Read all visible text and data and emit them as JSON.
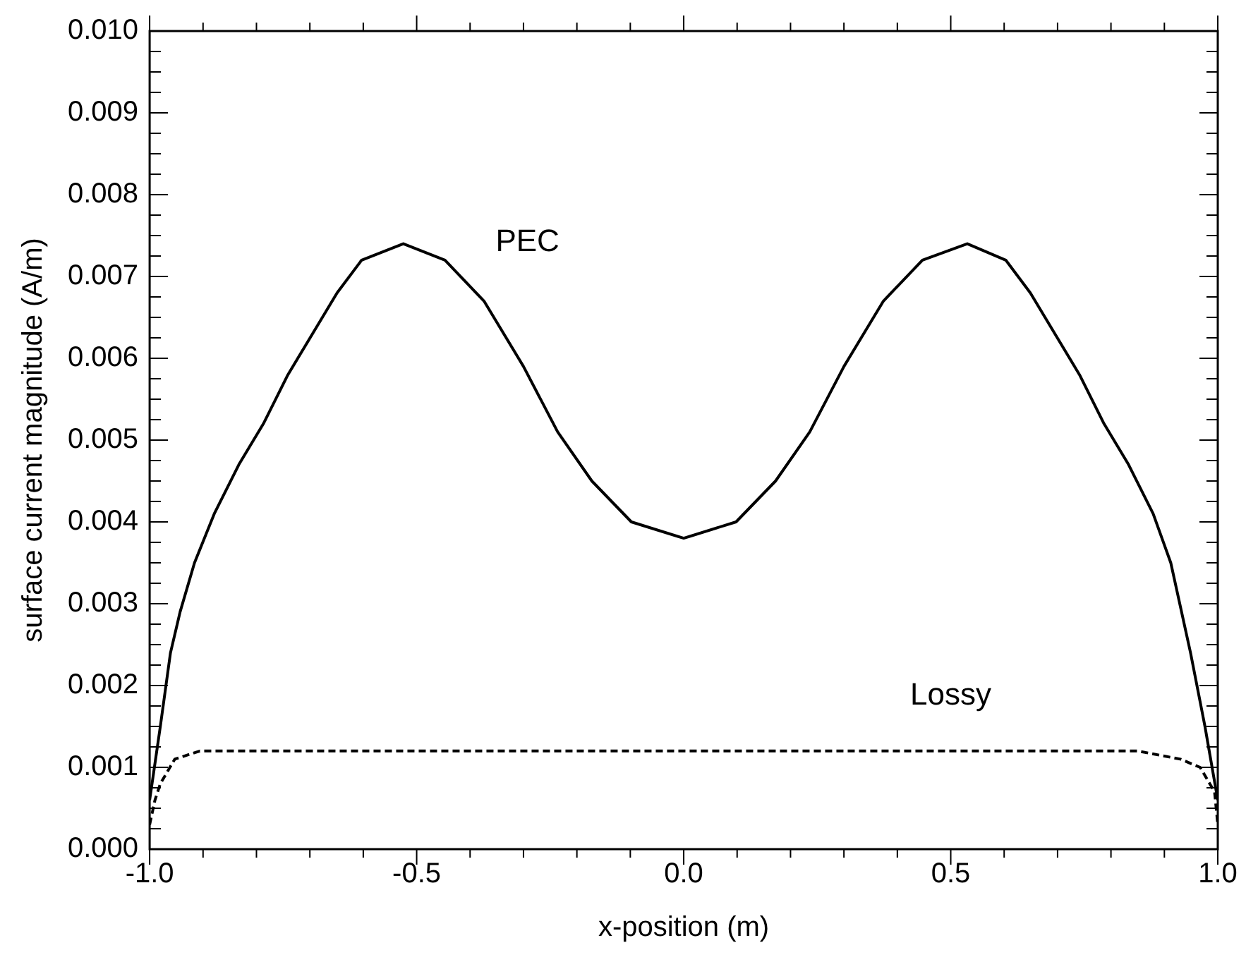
{
  "chart_data": {
    "type": "line",
    "xlabel": "x-position (m)",
    "ylabel": "surface current magnitude (A/m)",
    "xlim": [
      -1,
      1
    ],
    "ylim": [
      0,
      0.01
    ],
    "xticks": [
      {
        "value": -1,
        "label": "-1.0"
      },
      {
        "value": -0.9,
        "label": null
      },
      {
        "value": -0.8,
        "label": null
      },
      {
        "value": -0.7,
        "label": null
      },
      {
        "value": -0.6,
        "label": null
      },
      {
        "value": -0.5,
        "label": "-0.5"
      },
      {
        "value": -0.4,
        "label": null
      },
      {
        "value": -0.3,
        "label": null
      },
      {
        "value": -0.2,
        "label": null
      },
      {
        "value": -0.1,
        "label": null
      },
      {
        "value": 0,
        "label": "0.0"
      },
      {
        "value": 0.1,
        "label": null
      },
      {
        "value": 0.2,
        "label": null
      },
      {
        "value": 0.3,
        "label": null
      },
      {
        "value": 0.4,
        "label": null
      },
      {
        "value": 0.5,
        "label": "0.5"
      },
      {
        "value": 0.6,
        "label": null
      },
      {
        "value": 0.7,
        "label": null
      },
      {
        "value": 0.8,
        "label": null
      },
      {
        "value": 0.9,
        "label": null
      },
      {
        "value": 1,
        "label": "1.0"
      }
    ],
    "yticks": [
      {
        "value": 0,
        "label": "0.000"
      },
      {
        "value": 0.00025,
        "label": null
      },
      {
        "value": 0.0005,
        "label": null
      },
      {
        "value": 0.00075,
        "label": null
      },
      {
        "value": 0.001,
        "label": "0.001"
      },
      {
        "value": 0.00125,
        "label": null
      },
      {
        "value": 0.0015,
        "label": null
      },
      {
        "value": 0.00175,
        "label": null
      },
      {
        "value": 0.002,
        "label": "0.002"
      },
      {
        "value": 0.00225,
        "label": null
      },
      {
        "value": 0.0025,
        "label": null
      },
      {
        "value": 0.00275,
        "label": null
      },
      {
        "value": 0.003,
        "label": "0.003"
      },
      {
        "value": 0.00325,
        "label": null
      },
      {
        "value": 0.0035,
        "label": null
      },
      {
        "value": 0.00375,
        "label": null
      },
      {
        "value": 0.004,
        "label": "0.004"
      },
      {
        "value": 0.00425,
        "label": null
      },
      {
        "value": 0.0045,
        "label": null
      },
      {
        "value": 0.00475,
        "label": null
      },
      {
        "value": 0.005,
        "label": "0.005"
      },
      {
        "value": 0.00525,
        "label": null
      },
      {
        "value": 0.0055,
        "label": null
      },
      {
        "value": 0.00575,
        "label": null
      },
      {
        "value": 0.006,
        "label": "0.006"
      },
      {
        "value": 0.00625,
        "label": null
      },
      {
        "value": 0.0065,
        "label": null
      },
      {
        "value": 0.00675,
        "label": null
      },
      {
        "value": 0.007,
        "label": "0.007"
      },
      {
        "value": 0.00725,
        "label": null
      },
      {
        "value": 0.0075,
        "label": null
      },
      {
        "value": 0.00775,
        "label": null
      },
      {
        "value": 0.008,
        "label": "0.008"
      },
      {
        "value": 0.00825,
        "label": null
      },
      {
        "value": 0.0085,
        "label": null
      },
      {
        "value": 0.00875,
        "label": null
      },
      {
        "value": 0.009,
        "label": "0.009"
      },
      {
        "value": 0.00925,
        "label": null
      },
      {
        "value": 0.0095,
        "label": null
      },
      {
        "value": 0.00975,
        "label": null
      },
      {
        "value": 0.01,
        "label": "0.010"
      }
    ],
    "grid": false,
    "legend": false,
    "marker": "none",
    "series": [
      {
        "name": "PEC",
        "color": "#000000",
        "line_style": "solid",
        "x": [
          -1,
          -0.98,
          -0.961,
          -0.943,
          -0.916,
          -0.879,
          -0.833,
          -0.787,
          -0.741,
          -0.695,
          -0.649,
          -0.603,
          -0.525,
          -0.447,
          -0.374,
          -0.3,
          -0.236,
          -0.172,
          -0.098,
          0,
          0.098,
          0.172,
          0.236,
          0.3,
          0.374,
          0.447,
          0.531,
          0.603,
          0.649,
          0.695,
          0.741,
          0.787,
          0.833,
          0.879,
          0.912,
          0.949,
          0.976,
          1
        ],
        "values": [
          0.0006,
          0.0015,
          0.0024,
          0.0029,
          0.0035,
          0.0041,
          0.0047,
          0.0052,
          0.0058,
          0.0063,
          0.0068,
          0.0072,
          0.0074,
          0.0072,
          0.0067,
          0.0059,
          0.0051,
          0.0045,
          0.004,
          0.0038,
          0.004,
          0.0045,
          0.0051,
          0.0059,
          0.0067,
          0.0072,
          0.0074,
          0.0072,
          0.0068,
          0.0063,
          0.0058,
          0.0052,
          0.0047,
          0.0041,
          0.0035,
          0.0024,
          0.0015,
          0.0006
        ]
      },
      {
        "name": "Lossy",
        "color": "#000000",
        "line_style": "dashed",
        "x": [
          -1,
          -0.99,
          -0.98,
          -0.953,
          -0.906,
          -0.8,
          -0.6,
          -0.3,
          0,
          0.3,
          0.5,
          0.7,
          0.85,
          0.93,
          0.967,
          0.985,
          0.994,
          1
        ],
        "values": [
          0.0003,
          0.0006,
          0.0008,
          0.0011,
          0.0012,
          0.0012,
          0.0012,
          0.0012,
          0.0012,
          0.0012,
          0.0012,
          0.0012,
          0.0012,
          0.0011,
          0.001,
          0.0008,
          0.0007,
          0.0003
        ]
      }
    ]
  }
}
